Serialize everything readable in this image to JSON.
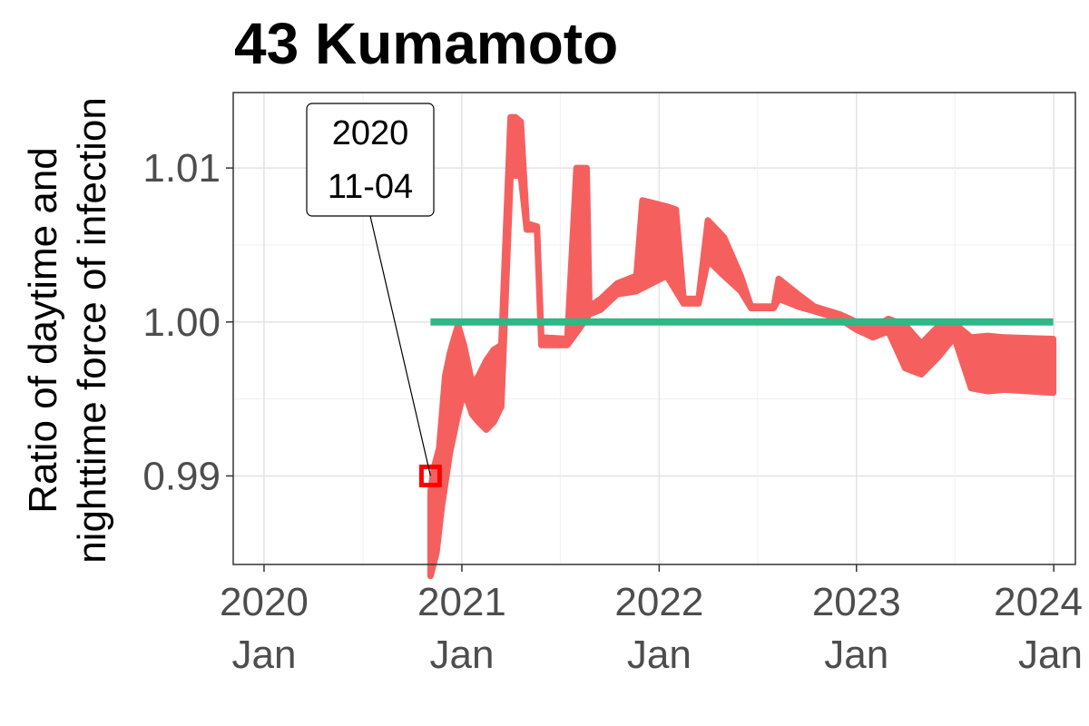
{
  "chart_data": {
    "type": "line",
    "title": "43 Kumamoto",
    "ylabel_lines": [
      "Ratio of daytime and",
      "nighttime force of infection"
    ],
    "xlabel": "",
    "xlim": [
      "2019-11-05",
      "2024-02-10"
    ],
    "ylim": [
      0.98425,
      1.0149
    ],
    "y_ticks": [
      {
        "value": 0.99,
        "label": "0.99"
      },
      {
        "value": 1.0,
        "label": "1.00"
      },
      {
        "value": 1.01,
        "label": "1.01"
      }
    ],
    "x_ticks": [
      {
        "date": "2020-01-01",
        "year": "2020",
        "month": "Jan"
      },
      {
        "date": "2021-01-01",
        "year": "2021",
        "month": "Jan"
      },
      {
        "date": "2022-01-01",
        "year": "2022",
        "month": "Jan"
      },
      {
        "date": "2023-01-01",
        "year": "2023",
        "month": "Jan"
      },
      {
        "date": "2024-01-01",
        "year": "2024",
        "month": "Jan"
      }
    ],
    "grid": true,
    "legend": "none",
    "reference_line": {
      "value": 1.0,
      "x_start": "2020-11-04",
      "x_end": "2023-12-31",
      "color": "#2db886"
    },
    "series": [
      {
        "color": "#f5605f",
        "upper": [
          [
            "2020-11-04",
            0.989
          ],
          [
            "2020-11-10",
            0.9905
          ],
          [
            "2020-11-20",
            0.9918
          ],
          [
            "2020-12-01",
            0.9965
          ],
          [
            "2020-12-10",
            0.998
          ],
          [
            "2020-12-18",
            0.999
          ],
          [
            "2020-12-25",
            0.9998
          ],
          [
            "2021-01-05",
            0.9985
          ],
          [
            "2021-01-20",
            0.996
          ],
          [
            "2021-02-01",
            0.9965
          ],
          [
            "2021-02-15",
            0.9975
          ],
          [
            "2021-03-01",
            0.9982
          ],
          [
            "2021-03-15",
            0.9985
          ],
          [
            "2021-04-01",
            1.0133
          ],
          [
            "2021-04-10",
            1.0133
          ],
          [
            "2021-04-20",
            1.013
          ],
          [
            "2021-05-01",
            1.0064
          ],
          [
            "2021-05-20",
            1.0062
          ],
          [
            "2021-05-28",
            0.999
          ],
          [
            "2021-07-15",
            0.9989
          ],
          [
            "2021-08-01",
            1.01
          ],
          [
            "2021-08-20",
            1.01
          ],
          [
            "2021-08-25",
            1.001
          ],
          [
            "2021-09-15",
            1.0015
          ],
          [
            "2021-10-15",
            1.0025
          ],
          [
            "2021-11-20",
            1.003
          ],
          [
            "2021-12-01",
            1.0079
          ],
          [
            "2022-01-15",
            1.0075
          ],
          [
            "2022-02-01",
            1.0073
          ],
          [
            "2022-02-15",
            1.0015
          ],
          [
            "2022-03-15",
            1.0015
          ],
          [
            "2022-04-01",
            1.0066
          ],
          [
            "2022-05-01",
            1.0055
          ],
          [
            "2022-06-01",
            1.003
          ],
          [
            "2022-06-20",
            1.001
          ],
          [
            "2022-08-01",
            1.001
          ],
          [
            "2022-08-10",
            1.0028
          ],
          [
            "2022-09-15",
            1.0018
          ],
          [
            "2022-10-15",
            1.001
          ],
          [
            "2022-12-01",
            1.0005
          ],
          [
            "2023-01-01",
            1.0
          ],
          [
            "2023-02-01",
            0.9996
          ],
          [
            "2023-03-01",
            1.0002
          ],
          [
            "2023-04-01",
            0.9998
          ],
          [
            "2023-05-01",
            0.9986
          ],
          [
            "2023-06-01",
            0.9997
          ],
          [
            "2023-07-01",
            0.9999
          ],
          [
            "2023-08-01",
            0.999
          ],
          [
            "2023-09-01",
            0.9991
          ],
          [
            "2023-10-01",
            0.999
          ],
          [
            "2023-12-31",
            0.9989
          ]
        ],
        "lower": [
          [
            "2020-11-04",
            0.9835
          ],
          [
            "2020-11-15",
            0.985
          ],
          [
            "2020-11-25",
            0.988
          ],
          [
            "2020-12-10",
            0.9915
          ],
          [
            "2020-12-25",
            0.994
          ],
          [
            "2021-01-05",
            0.9955
          ],
          [
            "2021-01-20",
            0.994
          ],
          [
            "2021-02-01",
            0.9935
          ],
          [
            "2021-02-15",
            0.993
          ],
          [
            "2021-03-01",
            0.9935
          ],
          [
            "2021-03-15",
            0.9945
          ],
          [
            "2021-04-01",
            1.0095
          ],
          [
            "2021-04-20",
            1.0095
          ],
          [
            "2021-05-01",
            1.006
          ],
          [
            "2021-05-20",
            1.006
          ],
          [
            "2021-05-28",
            0.9985
          ],
          [
            "2021-07-15",
            0.9985
          ],
          [
            "2021-08-01",
            0.9993
          ],
          [
            "2021-08-25",
            1.0005
          ],
          [
            "2021-09-15",
            1.0008
          ],
          [
            "2021-10-15",
            1.0018
          ],
          [
            "2021-11-20",
            1.002
          ],
          [
            "2021-12-01",
            1.0022
          ],
          [
            "2022-01-15",
            1.003
          ],
          [
            "2022-02-15",
            1.0012
          ],
          [
            "2022-03-15",
            1.0012
          ],
          [
            "2022-04-01",
            1.004
          ],
          [
            "2022-05-01",
            1.003
          ],
          [
            "2022-06-01",
            1.002
          ],
          [
            "2022-06-20",
            1.0009
          ],
          [
            "2022-08-01",
            1.0009
          ],
          [
            "2022-08-10",
            1.0015
          ],
          [
            "2022-09-15",
            1.001
          ],
          [
            "2022-10-15",
            1.0007
          ],
          [
            "2022-12-01",
            1.0002
          ],
          [
            "2023-01-01",
            0.9995
          ],
          [
            "2023-02-01",
            0.999
          ],
          [
            "2023-03-01",
            0.9994
          ],
          [
            "2023-04-01",
            0.997
          ],
          [
            "2023-05-01",
            0.9966
          ],
          [
            "2023-06-01",
            0.9977
          ],
          [
            "2023-07-01",
            0.999
          ],
          [
            "2023-08-01",
            0.9957
          ],
          [
            "2023-09-01",
            0.9955
          ],
          [
            "2023-10-01",
            0.9956
          ],
          [
            "2023-12-31",
            0.9954
          ]
        ]
      }
    ],
    "marker": {
      "date": "2020-11-04",
      "value": 0.99,
      "color": "#ff0000"
    },
    "annotation": {
      "line1": "2020",
      "line2": "11-04"
    }
  }
}
